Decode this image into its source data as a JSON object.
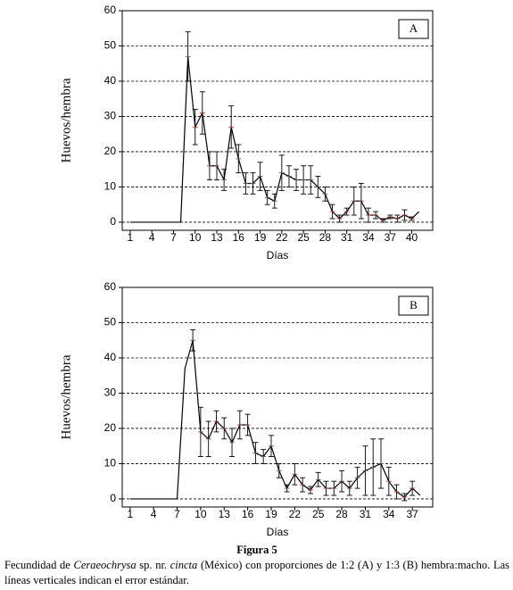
{
  "chart_data": [
    {
      "type": "line",
      "panel_label": "A",
      "xlabel": "Días",
      "ylabel": "Huevos/hembra",
      "x": [
        1,
        2,
        3,
        4,
        5,
        6,
        7,
        8,
        9,
        10,
        11,
        12,
        13,
        14,
        15,
        16,
        17,
        18,
        19,
        20,
        21,
        22,
        23,
        24,
        25,
        26,
        27,
        28,
        29,
        30,
        31,
        32,
        33,
        34,
        35,
        36,
        37,
        38,
        39,
        40,
        41
      ],
      "series": [
        {
          "color": "#000000",
          "values": [
            0,
            0,
            0,
            0,
            0,
            0,
            0,
            0,
            47,
            27,
            31,
            16,
            16,
            12,
            27,
            18,
            11,
            11,
            13,
            7,
            6,
            14,
            13,
            12,
            12,
            12,
            10,
            8,
            3,
            1,
            3,
            6,
            6,
            2,
            2,
            0.5,
            1.5,
            1,
            2,
            1,
            3
          ],
          "errors": [
            null,
            null,
            null,
            null,
            null,
            null,
            null,
            null,
            7,
            5,
            6,
            4,
            4,
            3,
            6,
            4,
            3,
            3,
            4,
            2,
            2,
            5,
            3,
            3,
            4,
            4,
            3,
            2,
            2,
            1,
            1,
            4,
            5,
            2,
            1,
            0.5,
            0.5,
            1,
            1.5,
            0.5,
            null
          ]
        }
      ],
      "xlim": [
        -0.1,
        42.9
      ],
      "ylim": [
        -2.3,
        60
      ],
      "xticks": [
        1,
        4,
        7,
        10,
        13,
        16,
        19,
        22,
        25,
        28,
        31,
        34,
        37,
        40
      ],
      "yticks": [
        0,
        10,
        20,
        30,
        40,
        50,
        60
      ],
      "grid": true
    },
    {
      "type": "line",
      "panel_label": "B",
      "xlabel": "Días",
      "ylabel": "Huevos/hembra",
      "x": [
        1,
        2,
        3,
        4,
        5,
        6,
        7,
        8,
        9,
        10,
        11,
        12,
        13,
        14,
        15,
        16,
        17,
        18,
        19,
        20,
        21,
        22,
        23,
        24,
        25,
        26,
        27,
        28,
        29,
        30,
        31,
        32,
        33,
        34,
        35,
        36,
        37,
        38
      ],
      "series": [
        {
          "color": "#000000",
          "values": [
            0,
            0,
            0,
            0,
            0,
            0,
            0,
            37,
            45,
            19,
            17,
            22,
            20,
            16,
            21,
            21,
            13,
            12,
            15,
            8,
            3,
            7,
            4,
            2.5,
            5.5,
            3,
            3,
            5,
            3,
            6,
            8,
            9,
            10,
            5,
            2,
            0.5,
            3,
            1
          ],
          "errors": [
            null,
            null,
            null,
            null,
            null,
            null,
            null,
            null,
            3,
            7,
            5,
            3,
            3,
            4,
            4,
            3,
            3,
            2,
            3,
            2,
            1,
            3,
            2,
            1,
            2,
            2,
            2,
            3,
            2,
            3,
            7,
            8,
            7,
            4,
            2,
            1,
            2,
            null
          ]
        }
      ],
      "xlim": [
        0,
        39.6
      ],
      "ylim": [
        -2.3,
        60
      ],
      "xticks": [
        1,
        4,
        7,
        10,
        13,
        16,
        19,
        22,
        25,
        28,
        31,
        34,
        37
      ],
      "yticks": [
        0,
        10,
        20,
        30,
        40,
        50,
        60
      ],
      "grid": true
    }
  ],
  "caption": {
    "label": "Figura 5",
    "parts": [
      "Fecundidad de ",
      "Ceraeochrysa",
      " sp. nr. ",
      "cincta",
      " (México) con proporciones de 1:2 (A) y 1:3 (B) hembra:macho. Las líneas verticales indican el error estándar."
    ]
  }
}
